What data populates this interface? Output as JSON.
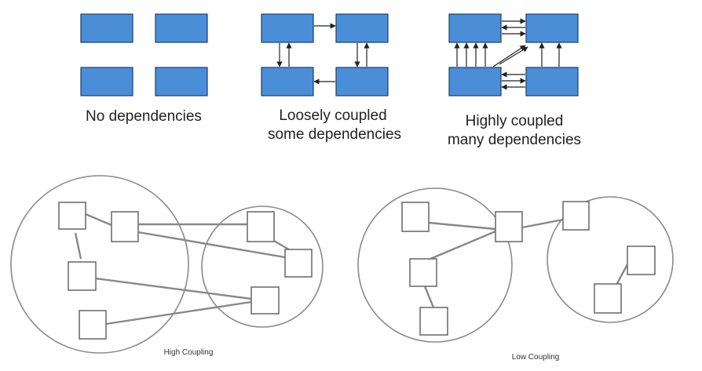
{
  "top_row": {
    "no_dependencies": {
      "caption": "No dependencies"
    },
    "loosely_coupled": {
      "caption_line1": "Loosely coupled",
      "caption_line2": "some dependencies"
    },
    "highly_coupled": {
      "caption_line1": "Highly coupled",
      "caption_line2": "many dependencies"
    }
  },
  "bottom_row": {
    "high_coupling": {
      "caption": "High Coupling"
    },
    "low_coupling": {
      "caption": "Low Coupling"
    }
  },
  "colors": {
    "module_fill": "#4a8ed8",
    "module_border": "#1d3f66",
    "link": "#888888",
    "circle": "#8a8a8a"
  }
}
